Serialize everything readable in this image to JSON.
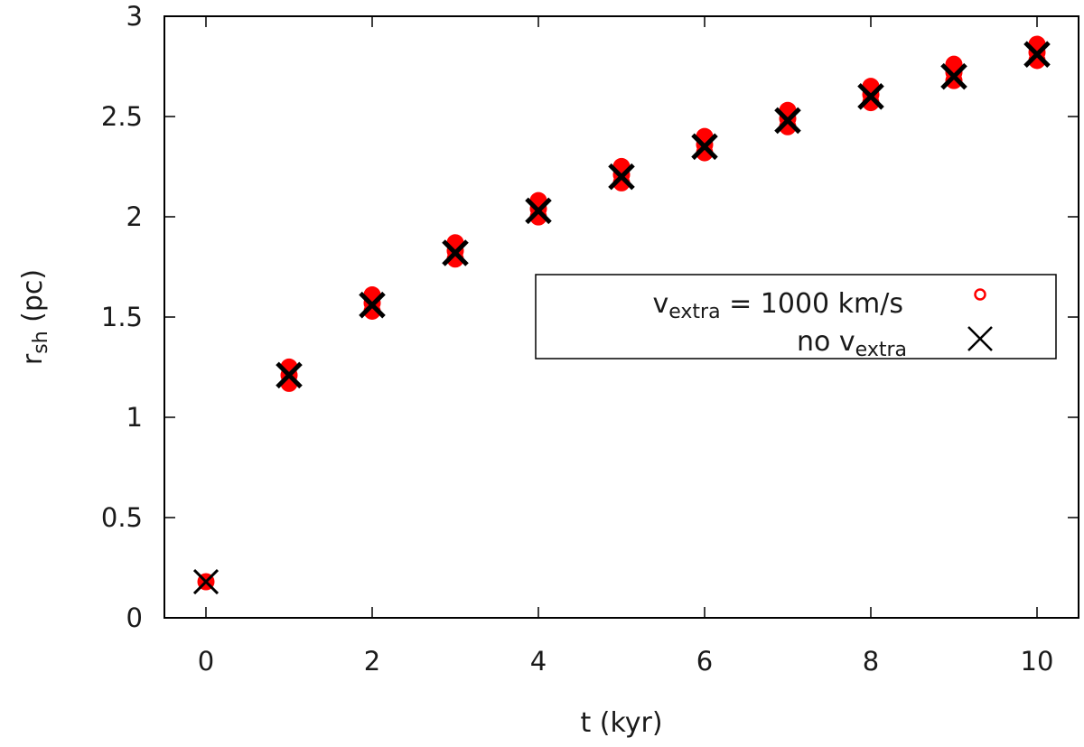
{
  "chart_data": {
    "type": "scatter",
    "title": "",
    "xlabel": "t (kyr)",
    "ylabel": {
      "base": "r",
      "sub": "sh",
      "suffix": " (pc)"
    },
    "xlim": [
      -0.5,
      10.5
    ],
    "ylim": [
      0,
      3
    ],
    "x_ticks": [
      0,
      2,
      4,
      6,
      8,
      10
    ],
    "x_tick_labels": [
      "0",
      "2",
      "4",
      "6",
      "8",
      "10"
    ],
    "y_ticks": [
      0,
      0.5,
      1,
      1.5,
      2,
      2.5,
      3
    ],
    "y_tick_labels": [
      "0",
      "0.5",
      "1",
      "1.5",
      "2",
      "2.5",
      "3"
    ],
    "grid": false,
    "legend_position": "center-right",
    "series": [
      {
        "name": "v_extra = 1000 km/s",
        "legend": {
          "base": "v",
          "sub": "extra",
          "suffix": " = 1000 km/s"
        },
        "marker": "circle",
        "color": "#ff0000",
        "x": [
          0,
          1,
          2,
          3,
          4,
          5,
          6,
          7,
          8,
          9,
          10
        ],
        "y": [
          0.18,
          1.21,
          1.57,
          1.83,
          2.04,
          2.21,
          2.36,
          2.49,
          2.61,
          2.72,
          2.82
        ]
      },
      {
        "name": "no v_extra",
        "legend": {
          "base": "no v",
          "sub": "extra",
          "suffix": ""
        },
        "marker": "cross",
        "color": "#000000",
        "x": [
          0,
          1,
          2,
          3,
          4,
          5,
          6,
          7,
          8,
          9,
          10
        ],
        "y": [
          0.18,
          1.21,
          1.56,
          1.82,
          2.03,
          2.2,
          2.35,
          2.48,
          2.6,
          2.7,
          2.81
        ]
      }
    ]
  }
}
